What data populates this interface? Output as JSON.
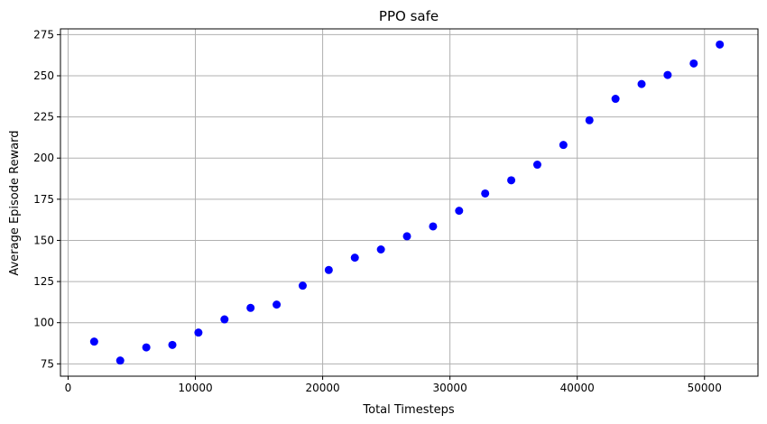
{
  "chart_data": {
    "type": "scatter",
    "title": "PPO safe",
    "xlabel": "Total Timesteps",
    "ylabel": "Average Episode Reward",
    "xlim": [
      -600,
      54200
    ],
    "ylim": [
      67.5,
      278.5
    ],
    "xticks": [
      0,
      10000,
      20000,
      30000,
      40000,
      50000
    ],
    "yticks": [
      75,
      100,
      125,
      150,
      175,
      200,
      225,
      250,
      275
    ],
    "grid": true,
    "marker_color": "#0000ff",
    "series": [
      {
        "x": [
          2048,
          4096,
          6144,
          8192,
          10240,
          12288,
          14336,
          16384,
          18432,
          20480,
          22528,
          24576,
          26624,
          28672,
          30720,
          32768,
          34816,
          36864,
          38912,
          40960,
          43008,
          45056,
          47104,
          49152,
          51200
        ],
        "y": [
          88.5,
          77,
          85,
          86.5,
          94,
          102,
          109,
          111,
          122.5,
          132,
          139.5,
          144.5,
          152.5,
          158.5,
          168,
          178.5,
          186.5,
          196,
          208,
          223,
          236,
          245,
          250.5,
          257.5,
          269
        ]
      }
    ]
  }
}
